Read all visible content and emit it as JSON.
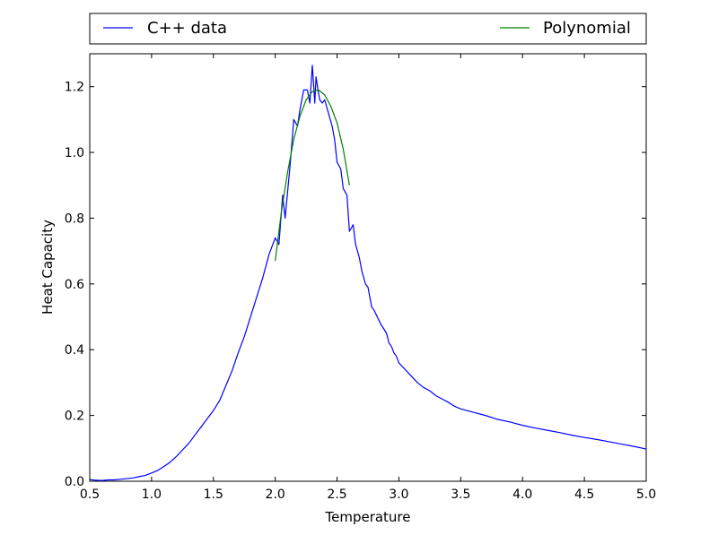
{
  "chart_data": {
    "type": "line",
    "title": "",
    "xlabel": "Temperature",
    "ylabel": "Heat Capacity",
    "xlim": [
      0.5,
      5.0
    ],
    "ylim": [
      0.0,
      1.3
    ],
    "xticks": [
      0.5,
      1.0,
      1.5,
      2.0,
      2.5,
      3.0,
      3.5,
      4.0,
      4.5,
      5.0
    ],
    "xtick_labels": [
      "0.5",
      "1.0",
      "1.5",
      "2.0",
      "2.5",
      "3.0",
      "3.5",
      "4.0",
      "4.5",
      "5.0"
    ],
    "yticks": [
      0.0,
      0.2,
      0.4,
      0.6,
      0.8,
      1.0,
      1.2
    ],
    "ytick_labels": [
      "0.0",
      "0.2",
      "0.4",
      "0.6",
      "0.8",
      "1.0",
      "1.2"
    ],
    "grid": false,
    "legend_placement": "above plot, spanning full width",
    "series": [
      {
        "name": "C++ data",
        "color": "#0000ff",
        "x": [
          0.5,
          0.55,
          0.6,
          0.65,
          0.7,
          0.75,
          0.8,
          0.85,
          0.9,
          0.95,
          1.0,
          1.05,
          1.1,
          1.15,
          1.2,
          1.25,
          1.3,
          1.35,
          1.4,
          1.45,
          1.5,
          1.55,
          1.6,
          1.65,
          1.7,
          1.75,
          1.8,
          1.85,
          1.9,
          1.95,
          2.0,
          2.03,
          2.06,
          2.08,
          2.1,
          2.12,
          2.15,
          2.18,
          2.2,
          2.23,
          2.26,
          2.28,
          2.3,
          2.32,
          2.33,
          2.35,
          2.36,
          2.38,
          2.4,
          2.43,
          2.46,
          2.48,
          2.5,
          2.53,
          2.55,
          2.58,
          2.6,
          2.63,
          2.65,
          2.68,
          2.7,
          2.73,
          2.75,
          2.78,
          2.8,
          2.85,
          2.9,
          2.92,
          2.94,
          2.96,
          2.98,
          3.0,
          3.05,
          3.1,
          3.15,
          3.2,
          3.25,
          3.3,
          3.35,
          3.4,
          3.45,
          3.5,
          3.6,
          3.7,
          3.8,
          3.9,
          4.0,
          4.1,
          4.2,
          4.3,
          4.4,
          4.5,
          4.6,
          4.7,
          4.8,
          4.9,
          5.0
        ],
        "y": [
          0.005,
          0.003,
          0.002,
          0.004,
          0.004,
          0.006,
          0.008,
          0.01,
          0.014,
          0.018,
          0.025,
          0.033,
          0.045,
          0.058,
          0.075,
          0.095,
          0.115,
          0.14,
          0.165,
          0.19,
          0.215,
          0.245,
          0.29,
          0.335,
          0.39,
          0.44,
          0.5,
          0.56,
          0.62,
          0.69,
          0.74,
          0.72,
          0.87,
          0.8,
          0.88,
          0.96,
          1.1,
          1.08,
          1.13,
          1.19,
          1.19,
          1.15,
          1.265,
          1.15,
          1.23,
          1.18,
          1.16,
          1.15,
          1.16,
          1.12,
          1.08,
          1.04,
          0.97,
          0.95,
          0.89,
          0.87,
          0.76,
          0.78,
          0.72,
          0.68,
          0.64,
          0.6,
          0.59,
          0.53,
          0.52,
          0.48,
          0.45,
          0.42,
          0.41,
          0.39,
          0.38,
          0.36,
          0.34,
          0.32,
          0.3,
          0.285,
          0.275,
          0.26,
          0.25,
          0.24,
          0.228,
          0.22,
          0.21,
          0.2,
          0.188,
          0.18,
          0.17,
          0.162,
          0.155,
          0.148,
          0.14,
          0.133,
          0.127,
          0.12,
          0.113,
          0.106,
          0.098
        ]
      },
      {
        "name": "Polynomial",
        "color": "#008000",
        "x": [
          2.0,
          2.05,
          2.1,
          2.15,
          2.2,
          2.25,
          2.3,
          2.35,
          2.4,
          2.45,
          2.5,
          2.55,
          2.6
        ],
        "y": [
          0.67,
          0.82,
          0.94,
          1.04,
          1.11,
          1.16,
          1.185,
          1.19,
          1.175,
          1.14,
          1.09,
          1.01,
          0.9
        ]
      }
    ]
  }
}
